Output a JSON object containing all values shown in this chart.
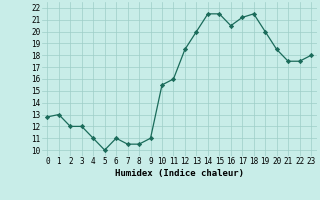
{
  "x": [
    0,
    1,
    2,
    3,
    4,
    5,
    6,
    7,
    8,
    9,
    10,
    11,
    12,
    13,
    14,
    15,
    16,
    17,
    18,
    19,
    20,
    21,
    22,
    23
  ],
  "y": [
    12.8,
    13.0,
    12.0,
    12.0,
    11.0,
    10.0,
    11.0,
    10.5,
    10.5,
    11.0,
    15.5,
    16.0,
    18.5,
    20.0,
    21.5,
    21.5,
    20.5,
    21.2,
    21.5,
    20.0,
    18.5,
    17.5,
    17.5,
    18.0
  ],
  "line_color": "#1a6b5a",
  "marker_color": "#1a6b5a",
  "bg_color": "#c8ede8",
  "grid_color": "#9ecec8",
  "xlabel": "Humidex (Indice chaleur)",
  "ylabel_ticks": [
    10,
    11,
    12,
    13,
    14,
    15,
    16,
    17,
    18,
    19,
    20,
    21,
    22
  ],
  "ylim": [
    9.5,
    22.5
  ],
  "xlim": [
    -0.5,
    23.5
  ],
  "xlabel_fontsize": 6.5,
  "tick_fontsize": 5.5
}
